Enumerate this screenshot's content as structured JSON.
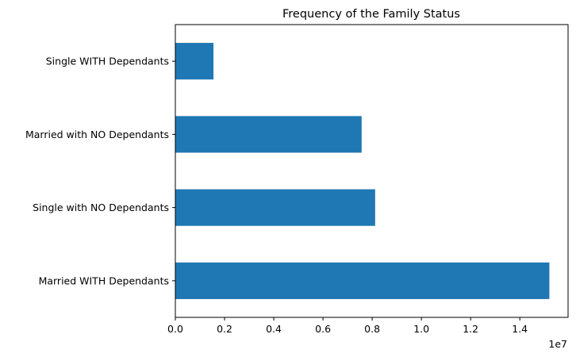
{
  "chart_data": {
    "type": "bar",
    "orientation": "horizontal",
    "title": "Frequency of the Family Status",
    "xlabel": "",
    "ylabel": "",
    "x_scale_label": "1e7",
    "categories": [
      "Married WITH Dependants",
      "Single with NO Dependants",
      "Married with NO Dependants",
      "Single WITH Dependants"
    ],
    "values": [
      15200000,
      8120000,
      7570000,
      1550000
    ],
    "xlim": [
      0,
      15960000
    ],
    "x_ticks": [
      0,
      2000000,
      4000000,
      6000000,
      8000000,
      10000000,
      12000000,
      14000000
    ],
    "x_tick_labels": [
      "0.0",
      "0.2",
      "0.4",
      "0.6",
      "0.8",
      "1.0",
      "1.2",
      "1.4"
    ],
    "bar_color": "#1f77b4",
    "grid": false,
    "legend": "none"
  }
}
